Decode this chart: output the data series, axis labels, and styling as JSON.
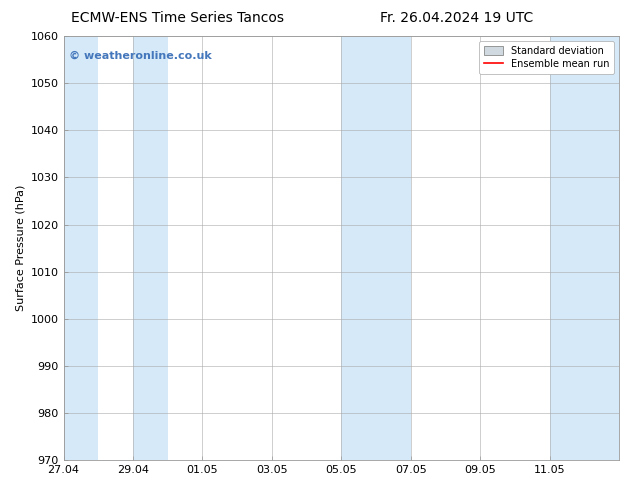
{
  "title_left": "ECMW-ENS Time Series Tancos",
  "title_right": "Fr. 26.04.2024 19 UTC",
  "ylabel": "Surface Pressure (hPa)",
  "ylim": [
    970,
    1060
  ],
  "yticks": [
    970,
    980,
    990,
    1000,
    1010,
    1020,
    1030,
    1040,
    1050,
    1060
  ],
  "xmin": 0,
  "xmax": 16,
  "xtick_positions": [
    0,
    2,
    4,
    6,
    8,
    10,
    12,
    14
  ],
  "xtick_labels": [
    "27.04",
    "29.04",
    "01.05",
    "03.05",
    "05.05",
    "07.05",
    "09.05",
    "11.05"
  ],
  "shaded_bands": [
    {
      "xstart": 0,
      "xend": 1
    },
    {
      "xstart": 2,
      "xend": 3
    },
    {
      "xstart": 8,
      "xend": 9
    },
    {
      "xstart": 9,
      "xend": 10
    },
    {
      "xstart": 14,
      "xend": 16
    }
  ],
  "band_color": "#d6e9f8",
  "watermark": "© weatheronline.co.uk",
  "watermark_color": "#4477bb",
  "legend_std_label": "Standard deviation",
  "legend_mean_label": "Ensemble mean run",
  "legend_std_color": "#cccccc",
  "legend_mean_color": "#ff0000",
  "bg_color": "#ffffff",
  "title_fontsize": 10,
  "axis_label_fontsize": 8,
  "tick_fontsize": 8,
  "grid_color": "#aaaaaa",
  "spine_color": "#999999"
}
